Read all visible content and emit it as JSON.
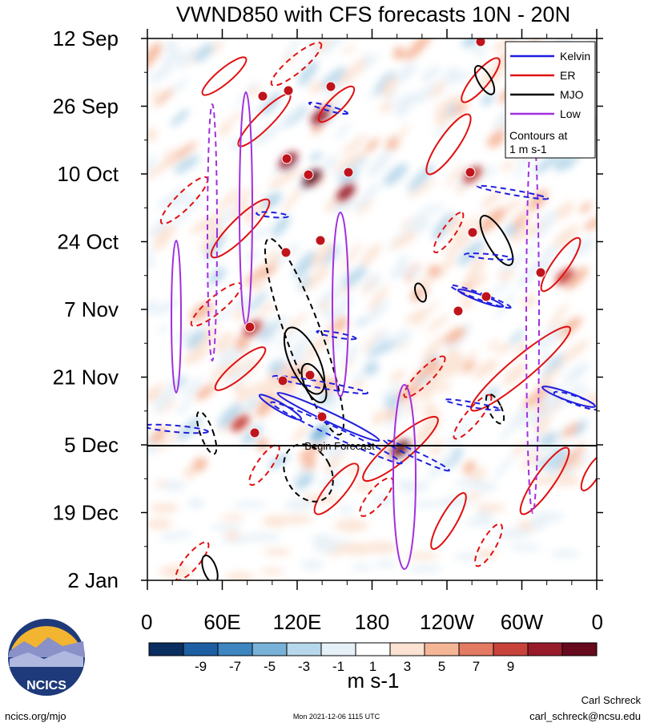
{
  "chart_data": {
    "type": "heatmap",
    "title": "VWND850 with CFS forecasts  10N - 20N",
    "x_tick_labels": [
      "0",
      "60E",
      "120E",
      "180",
      "120W",
      "60W",
      "0"
    ],
    "x_ticks_deg": [
      0,
      60,
      120,
      180,
      240,
      300,
      360
    ],
    "y_tick_labels": [
      "12 Sep",
      "26 Sep",
      "10 Oct",
      "24 Oct",
      "7 Nov",
      "21 Nov",
      "5 Dec",
      "19 Dec",
      "2 Jan"
    ],
    "begin_forecast_label": "Begin Forecast",
    "begin_forecast_date": "5 Dec",
    "colorbar": {
      "tick_labels": [
        "-9",
        "-7",
        "-5",
        "-3",
        "-1",
        "1",
        "3",
        "5",
        "7",
        "9"
      ],
      "colors": [
        "#0b2e60",
        "#1d5fa2",
        "#3d86c0",
        "#79b2d8",
        "#b7d7ea",
        "#e6f0f7",
        "#ffffff",
        "#fbe2d2",
        "#f5b597",
        "#e37a62",
        "#c7433b",
        "#981b2b",
        "#670a1e"
      ],
      "units": "m s-1"
    },
    "legend": {
      "placement": "top-right",
      "entries": [
        {
          "name": "Kelvin",
          "color": "#1f1fe0",
          "style": "solid"
        },
        {
          "name": "ER",
          "color": "#e01010",
          "style": "solid"
        },
        {
          "name": "MJO",
          "color": "#000000",
          "style": "solid"
        },
        {
          "name": "Low",
          "color": "#a030e0",
          "style": "solid"
        }
      ],
      "note_line1": "Contours at",
      "note_line2": "1 m s-1"
    }
  },
  "footer": {
    "org": "NCICS",
    "url": "ncics.org/mjo",
    "timestamp": "Mon 2021-12-06 1115 UTC",
    "author": "Carl Schreck",
    "email": "carl_schreck@ncsu.edu"
  }
}
